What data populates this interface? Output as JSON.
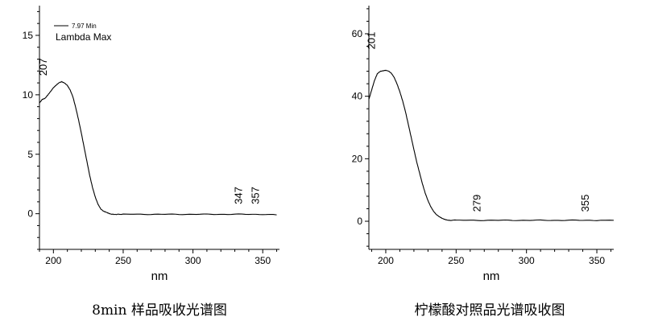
{
  "chart_data": [
    {
      "type": "line",
      "title": "",
      "xlabel": "nm",
      "ylabel": "",
      "xlim": [
        190,
        362
      ],
      "ylim": [
        -3,
        17.5
      ],
      "x_ticks": [
        200,
        250,
        300,
        350
      ],
      "y_ticks": [
        0,
        5,
        10,
        15
      ],
      "legend": {
        "position": "top-left",
        "entries": [
          "7.97 Min"
        ],
        "subtitle": "Lambda Max"
      },
      "peak_labels": [
        {
          "text": "207",
          "x": 193,
          "y": 11.6
        },
        {
          "text": "347",
          "x": 333,
          "y": 0.8
        },
        {
          "text": "357",
          "x": 345,
          "y": 0.8
        }
      ],
      "series": [
        {
          "name": "7.97 Min",
          "x": [
            190,
            192,
            194,
            196,
            198,
            200,
            202,
            204,
            206,
            208,
            210,
            212,
            214,
            216,
            218,
            220,
            222,
            224,
            226,
            228,
            230,
            232,
            234,
            236,
            238,
            240,
            242,
            245,
            250,
            260,
            270,
            280,
            290,
            300,
            310,
            320,
            330,
            340,
            350,
            360
          ],
          "y": [
            9.3,
            9.6,
            9.7,
            10.0,
            10.3,
            10.6,
            10.8,
            11.0,
            11.1,
            11.0,
            10.8,
            10.4,
            9.8,
            8.9,
            7.9,
            6.8,
            5.6,
            4.4,
            3.2,
            2.2,
            1.4,
            0.8,
            0.4,
            0.2,
            0.1,
            0.0,
            -0.05,
            -0.05,
            -0.05,
            -0.05,
            -0.05,
            -0.05,
            -0.05,
            -0.05,
            -0.05,
            -0.05,
            -0.05,
            -0.05,
            -0.05,
            -0.1
          ]
        }
      ]
    },
    {
      "type": "line",
      "title": "",
      "xlabel": "nm",
      "ylabel": "",
      "xlim": [
        188,
        362
      ],
      "ylim": [
        -9,
        69
      ],
      "x_ticks": [
        200,
        250,
        300,
        350
      ],
      "y_ticks": [
        0,
        20,
        40,
        60
      ],
      "peak_labels": [
        {
          "text": "201",
          "x": 190,
          "y": 55
        },
        {
          "text": "279",
          "x": 265,
          "y": 3
        },
        {
          "text": "355",
          "x": 342,
          "y": 3
        }
      ],
      "series": [
        {
          "name": "",
          "x": [
            188,
            190,
            192,
            194,
            196,
            198,
            200,
            202,
            204,
            206,
            208,
            210,
            212,
            214,
            216,
            218,
            220,
            222,
            224,
            226,
            228,
            230,
            232,
            234,
            236,
            238,
            240,
            242,
            244,
            246,
            250,
            260,
            270,
            280,
            290,
            300,
            310,
            320,
            330,
            340,
            350,
            362
          ],
          "y": [
            39,
            42,
            45,
            47.2,
            48,
            48.2,
            48.3,
            48,
            47.3,
            46,
            44,
            41.5,
            38.5,
            35,
            31,
            27,
            23,
            19,
            15.5,
            12,
            9,
            6.6,
            4.7,
            3.2,
            2.1,
            1.4,
            0.9,
            0.6,
            0.4,
            0.3,
            0.3,
            0.3,
            0.3,
            0.3,
            0.3,
            0.3,
            0.3,
            0.3,
            0.3,
            0.3,
            0.3,
            0.3
          ]
        }
      ]
    }
  ],
  "captions": {
    "left": "8min 样品吸收光谱图",
    "right": "柠檬酸对照品光谱吸收图"
  },
  "colors": {
    "line": "#000000",
    "axis": "#000000",
    "background": "#ffffff"
  }
}
